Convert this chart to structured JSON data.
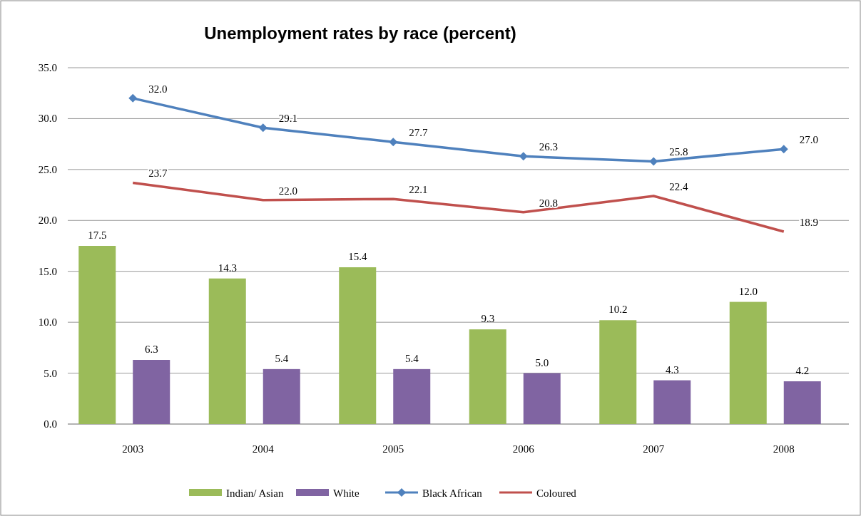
{
  "chart_data": {
    "type": "bar",
    "title": "Unemployment rates by race (percent)",
    "categories": [
      "2003",
      "2004",
      "2005",
      "2006",
      "2007",
      "2008"
    ],
    "series": [
      {
        "name": "Indian/ Asian",
        "color": "#9bbb59",
        "values": [
          17.5,
          14.3,
          15.4,
          9.3,
          10.2,
          12.0
        ],
        "value_labels": [
          "17.5",
          "14.3",
          "15.4",
          "9.3",
          "10.2",
          "12.0"
        ]
      },
      {
        "name": "White",
        "color": "#8064a2",
        "values": [
          6.3,
          5.4,
          5.4,
          5.0,
          4.3,
          4.2
        ],
        "value_labels": [
          "6.3",
          "5.4",
          "5.4",
          "5.0",
          "4.3",
          "4.2"
        ]
      },
      {
        "name": "Black African",
        "type": "line",
        "color": "#4f81bd",
        "marker": "diamond",
        "values": [
          32.0,
          29.1,
          27.7,
          26.3,
          25.8,
          27.0
        ],
        "value_labels": [
          "32.0",
          "29.1",
          "27.7",
          "26.3",
          "25.8",
          "27.0"
        ]
      },
      {
        "name": "Coloured",
        "type": "line",
        "color": "#c0504d",
        "marker": "none",
        "values": [
          23.7,
          22.0,
          22.1,
          20.8,
          22.4,
          18.9
        ],
        "value_labels": [
          "23.7",
          "22.0",
          "22.1",
          "20.8",
          "22.4",
          "18.9"
        ]
      }
    ],
    "ylim": [
      0,
      35
    ],
    "yticks": [
      {
        "value": 0,
        "label": "0.0"
      },
      {
        "value": 5,
        "label": "5.0"
      },
      {
        "value": 10,
        "label": "10.0"
      },
      {
        "value": 15,
        "label": "15.0"
      },
      {
        "value": 20,
        "label": "20.0"
      },
      {
        "value": 25,
        "label": "25.0"
      },
      {
        "value": 30,
        "label": "30.0"
      },
      {
        "value": 35,
        "label": "35.0"
      }
    ],
    "grid": "y",
    "legend": "bottom"
  }
}
